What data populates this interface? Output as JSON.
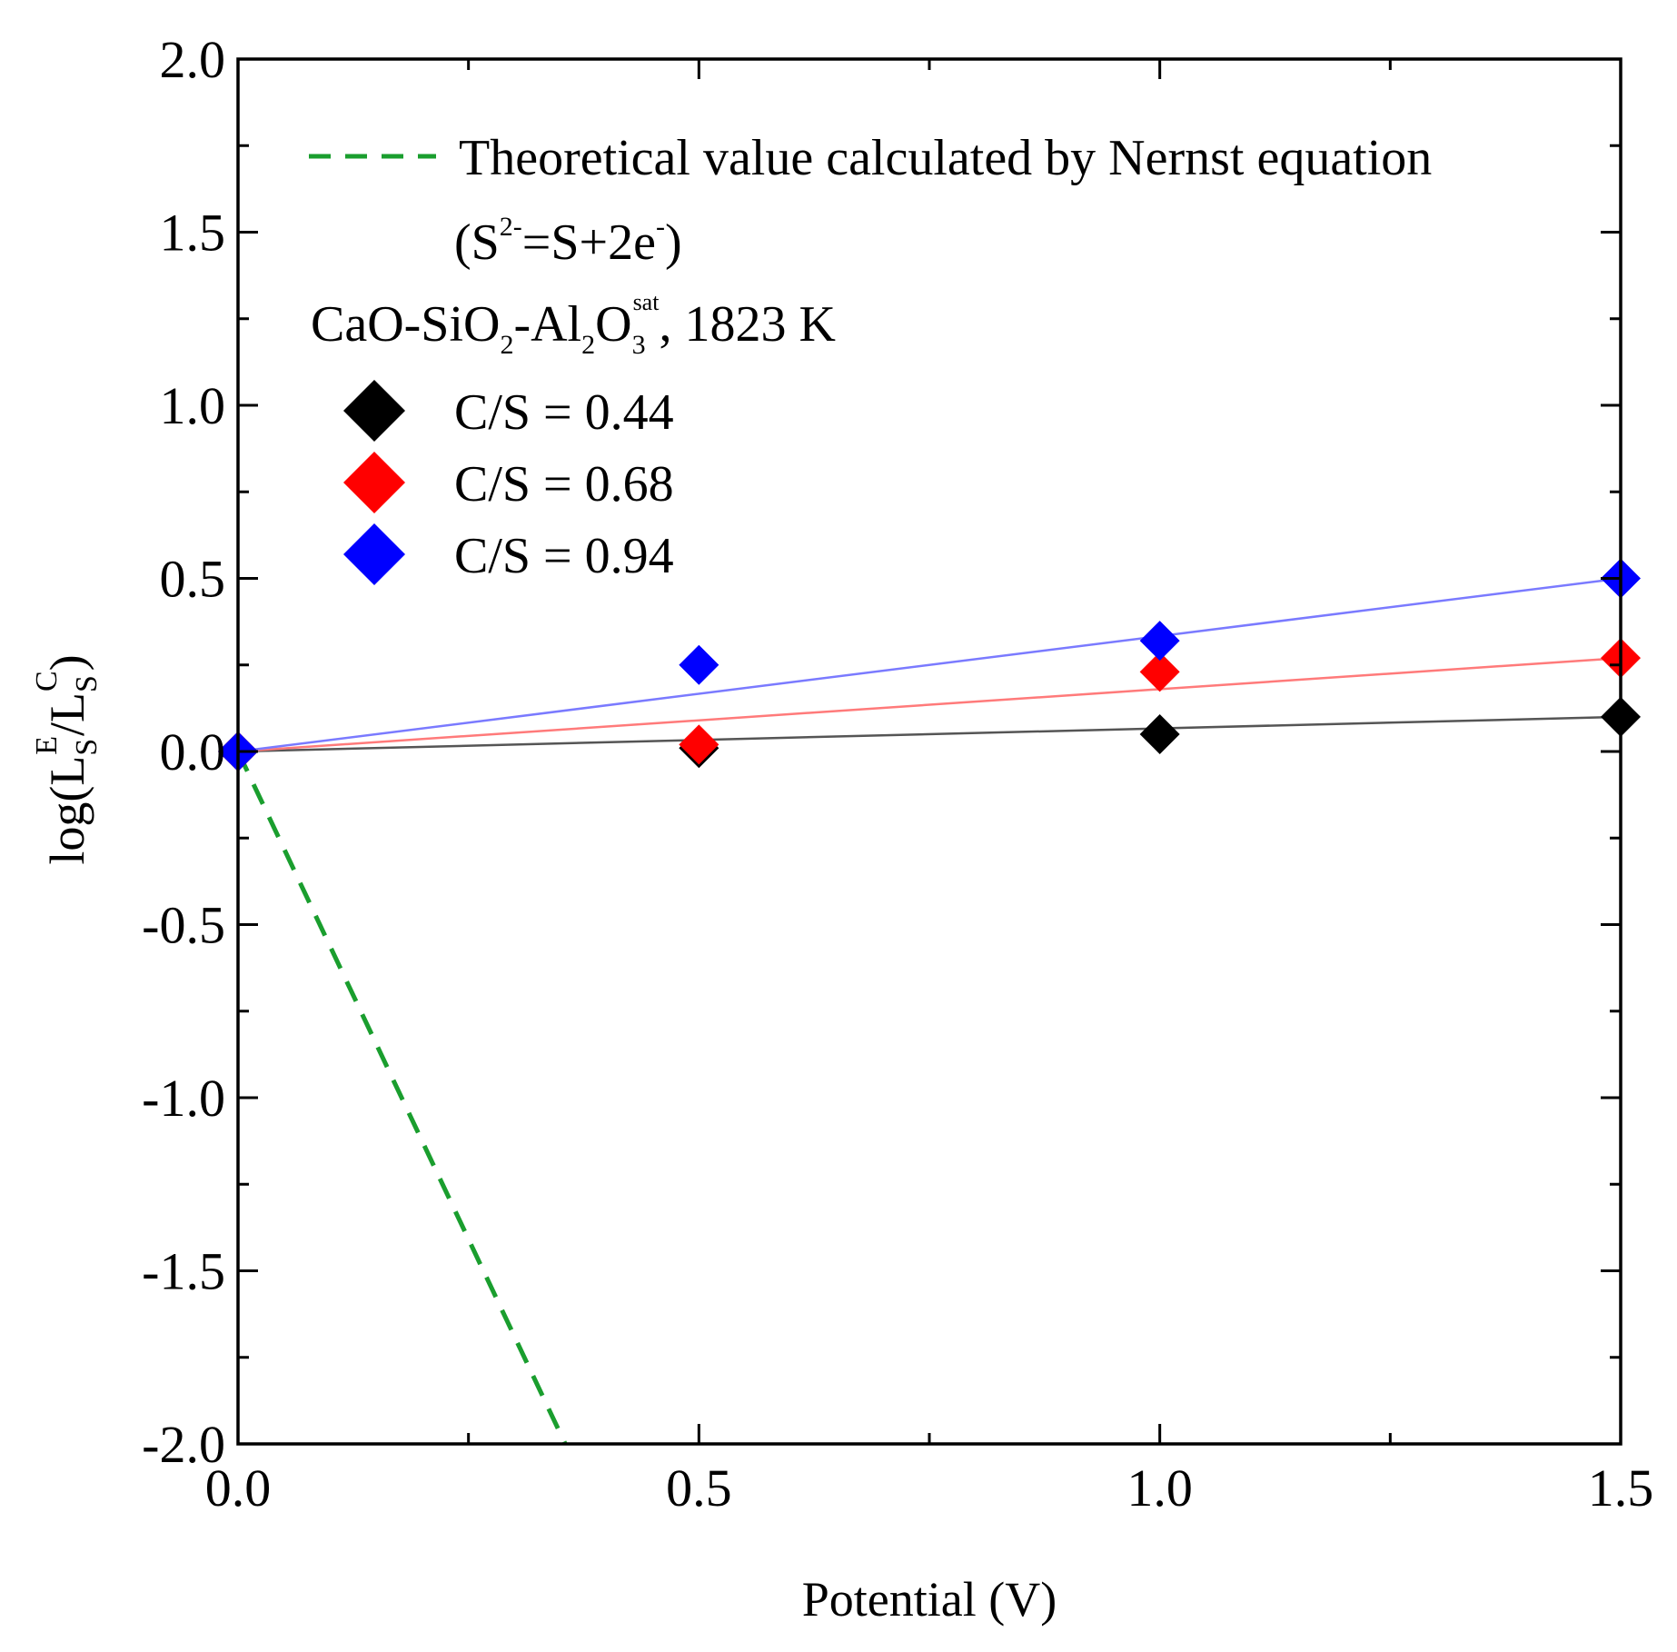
{
  "chart_data": {
    "type": "scatter",
    "title": "",
    "xlabel": "Potential (V)",
    "ylabel": {
      "prefix": "log(L",
      "sub1": "S",
      "sup1": "E",
      "mid": "/L",
      "sub2": "S",
      "sup2": "C",
      "suffix": ")"
    },
    "xlim": [
      0.0,
      1.5
    ],
    "ylim": [
      -2.0,
      2.0
    ],
    "x_ticks": [
      {
        "value": 0.0,
        "label": "0.0"
      },
      {
        "value": 0.5,
        "label": "0.5"
      },
      {
        "value": 1.0,
        "label": "1.0"
      },
      {
        "value": 1.5,
        "label": "1.5"
      }
    ],
    "y_ticks": [
      {
        "value": 2.0,
        "label": "2.0"
      },
      {
        "value": 1.5,
        "label": "1.5"
      },
      {
        "value": 1.0,
        "label": "1.0"
      },
      {
        "value": 0.5,
        "label": "0.5"
      },
      {
        "value": 0.0,
        "label": "0.0"
      },
      {
        "value": -0.5,
        "label": "-0.5"
      },
      {
        "value": -1.0,
        "label": "-1.0"
      },
      {
        "value": -1.5,
        "label": "-1.5"
      },
      {
        "value": -2.0,
        "label": "-2.0"
      }
    ],
    "series": [
      {
        "name": "C/S = 0.44",
        "color": "#000000",
        "line_color": "#555555",
        "marker": "diamond",
        "x": [
          0.0,
          0.5,
          1.0,
          1.5
        ],
        "y": [
          0.0,
          0.01,
          0.05,
          0.1
        ],
        "fit_line": {
          "x": [
            0.0,
            1.5
          ],
          "y": [
            0.0,
            0.1
          ]
        }
      },
      {
        "name": "C/S = 0.68",
        "color": "#ff0000",
        "line_color": "#ff7a7a",
        "marker": "diamond",
        "x": [
          0.0,
          0.5,
          1.0,
          1.5
        ],
        "y": [
          0.0,
          0.02,
          0.23,
          0.27
        ],
        "fit_line": {
          "x": [
            0.0,
            1.5
          ],
          "y": [
            0.0,
            0.27
          ]
        }
      },
      {
        "name": "C/S = 0.94",
        "color": "#0000ff",
        "line_color": "#7a7aff",
        "marker": "diamond",
        "x": [
          0.0,
          0.5,
          1.0,
          1.5
        ],
        "y": [
          0.0,
          0.25,
          0.32,
          0.5
        ],
        "fit_line": {
          "x": [
            0.0,
            1.5
          ],
          "y": [
            0.0,
            0.5
          ]
        }
      }
    ],
    "theoretical_line": {
      "name": "Theoretical value calculated by Nernst equation",
      "equation_parts": {
        "lp": "(S",
        "sup1": "2-",
        "mid": "=S+2e",
        "sup2": "-",
        "rp": ")"
      },
      "color": "#1a9e2e",
      "style": "dashed",
      "x": [
        0.0,
        0.355
      ],
      "y": [
        0.0,
        -2.0
      ]
    },
    "annotation": {
      "p1": "CaO-SiO",
      "s1": "2",
      "p2": "-Al",
      "s2": "2",
      "p3": "O",
      "s3": "3",
      "sup3": "sat",
      "p4": ", 1823 K"
    },
    "legend_position": "top-left",
    "grid": false
  }
}
